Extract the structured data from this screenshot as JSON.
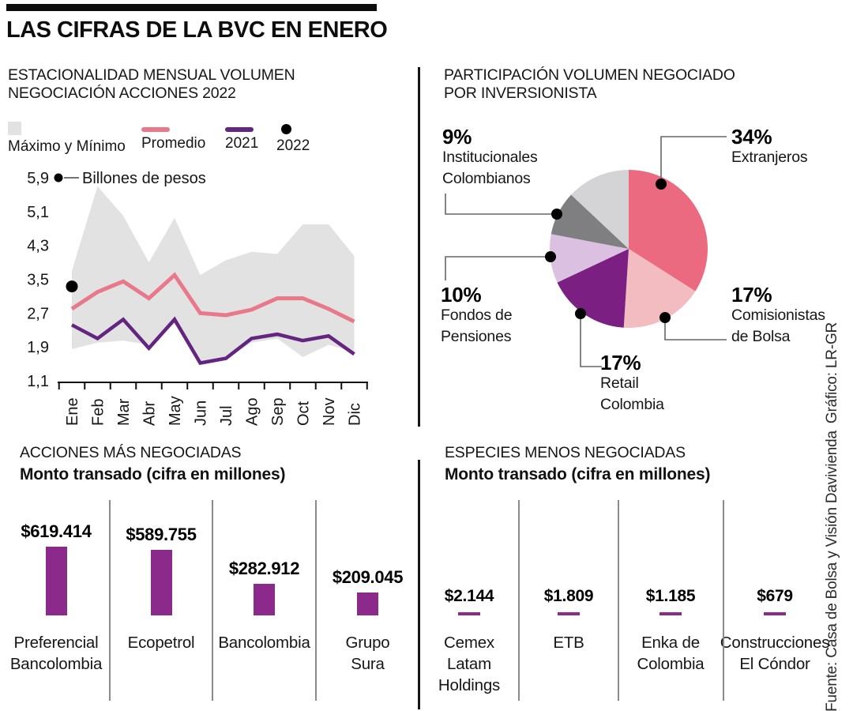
{
  "title": "LAS CIFRAS DE LA BVC EN ENERO",
  "credits": {
    "grafico": "Gráfico: LR-GR",
    "fuente": "Fuente: Casa de Bolsa y Visión Davivienda"
  },
  "sections": {
    "seasonality": {
      "title_line1": "ESTACIONALIDAD MENSUAL VOLUMEN",
      "title_line2": "NEGOCIACIÓN ACCIONES 2022"
    },
    "participation": {
      "title_line1": "PARTICIPACIÓN VOLUMEN NEGOCIADO",
      "title_line2": "POR INVERSIONISTA"
    },
    "top_traded": {
      "title": "ACCIONES MÁS NEGOCIADAS",
      "subtitle": "Monto transado (cifra en millones)"
    },
    "least_traded": {
      "title": "ESPECIES MENOS NEGOCIADAS",
      "subtitle": "Monto transado (cifra en millones)"
    }
  },
  "chart_data": [
    {
      "type": "line",
      "title": "ESTACIONALIDAD MENSUAL VOLUMEN NEGOCIACIÓN ACCIONES 2022",
      "unit_label": "Billones de pesos",
      "x": [
        "Ene",
        "Feb",
        "Mar",
        "Abr",
        "May",
        "Jun",
        "Jul",
        "Ago",
        "Sep",
        "Oct",
        "Nov",
        "Dic"
      ],
      "yticks": [
        {
          "v": 5.9,
          "label": "5,9"
        },
        {
          "v": 5.1,
          "label": "5,1"
        },
        {
          "v": 4.3,
          "label": "4,3"
        },
        {
          "v": 3.5,
          "label": "3,5"
        },
        {
          "v": 2.7,
          "label": "2,7"
        },
        {
          "v": 1.9,
          "label": "1,9"
        },
        {
          "v": 1.1,
          "label": "1,1"
        }
      ],
      "ylim": [
        1.1,
        5.9
      ],
      "band_color": "#e3e2e3",
      "series": [
        {
          "name": "Máximo",
          "role": "band_upper",
          "values": [
            3.7,
            5.7,
            5.0,
            3.9,
            4.95,
            3.6,
            3.95,
            4.15,
            4.1,
            4.8,
            4.8,
            4.05
          ]
        },
        {
          "name": "Mínimo",
          "role": "band_lower",
          "values": [
            1.85,
            2.0,
            2.05,
            1.95,
            2.45,
            1.55,
            1.65,
            2.0,
            2.1,
            1.66,
            1.95,
            1.78
          ]
        },
        {
          "name": "Promedio",
          "role": "line",
          "color": "#e8798a",
          "values": [
            2.8,
            3.2,
            3.45,
            3.05,
            3.6,
            2.7,
            2.65,
            2.78,
            3.05,
            3.05,
            2.8,
            2.5
          ]
        },
        {
          "name": "2021",
          "role": "line",
          "color": "#63257f",
          "values": [
            2.42,
            2.1,
            2.55,
            1.87,
            2.55,
            1.52,
            1.63,
            2.1,
            2.2,
            2.05,
            2.16,
            1.73
          ]
        },
        {
          "name": "2022",
          "role": "point",
          "color": "#000000",
          "values": [
            3.33
          ]
        }
      ],
      "legend": [
        {
          "label": "Máximo y Mínimo",
          "swatch": "square",
          "color": "#e3e2e3"
        },
        {
          "label": "Promedio",
          "swatch": "dash",
          "color": "#e8798a"
        },
        {
          "label": "2021",
          "swatch": "dash",
          "color": "#63257f"
        },
        {
          "label": "2022",
          "swatch": "dot",
          "color": "#000000"
        }
      ]
    },
    {
      "type": "pie",
      "title": "PARTICIPACIÓN VOLUMEN NEGOCIADO POR INVERSIONISTA",
      "slices": [
        {
          "label": "Extranjeros",
          "pct": 34,
          "color": "#ec6a80"
        },
        {
          "label": "Comisionistas de Bolsa",
          "pct": 17,
          "color": "#f3bcc1"
        },
        {
          "label": "Retail Colombia",
          "pct": 17,
          "color": "#7b2082"
        },
        {
          "label": "Fondos de Pensiones",
          "pct": 10,
          "color": "#dcc0e2"
        },
        {
          "label": "Institucionales Colombianos",
          "pct": 9,
          "color": "#7f7e81"
        },
        {
          "label": "",
          "pct": 13,
          "color": "#d4d3d5"
        }
      ],
      "callouts": [
        {
          "pct": "34%",
          "l1": "Extranjeros",
          "l2": ""
        },
        {
          "pct": "9%",
          "l1": "Institucionales",
          "l2": "Colombianos"
        },
        {
          "pct": "10%",
          "l1": "Fondos de",
          "l2": "Pensiones"
        },
        {
          "pct": "17%",
          "l1": "Retail",
          "l2": "Colombia"
        },
        {
          "pct": "17%",
          "l1": "Comisionistas",
          "l2": "de Bolsa"
        }
      ]
    },
    {
      "type": "bar",
      "title": "ACCIONES MÁS NEGOCIADAS",
      "subtitle": "Monto transado (cifra en millones)",
      "bar_color": "#8c2a8c",
      "items": [
        {
          "name": "Preferencial\nBancolombia",
          "value": 619414,
          "label": "$619.414"
        },
        {
          "name": "Ecopetrol",
          "value": 589755,
          "label": "$589.755"
        },
        {
          "name": "Bancolombia",
          "value": 282912,
          "label": "$282.912"
        },
        {
          "name": "Grupo\nSura",
          "value": 209045,
          "label": "$209.045"
        }
      ]
    },
    {
      "type": "bar",
      "title": "ESPECIES MENOS NEGOCIADAS",
      "subtitle": "Monto transado (cifra en millones)",
      "bar_color": "#8c2a8c",
      "items": [
        {
          "name": "Cemex\nLatam\nHoldings",
          "value": 2144,
          "label": "$2.144"
        },
        {
          "name": "ETB",
          "value": 1809,
          "label": "$1.809"
        },
        {
          "name": "Enka de\nColombia",
          "value": 1185,
          "label": "$1.185"
        },
        {
          "name": "Construcciones\nEl Cóndor",
          "value": 679,
          "label": "$679"
        }
      ]
    }
  ]
}
